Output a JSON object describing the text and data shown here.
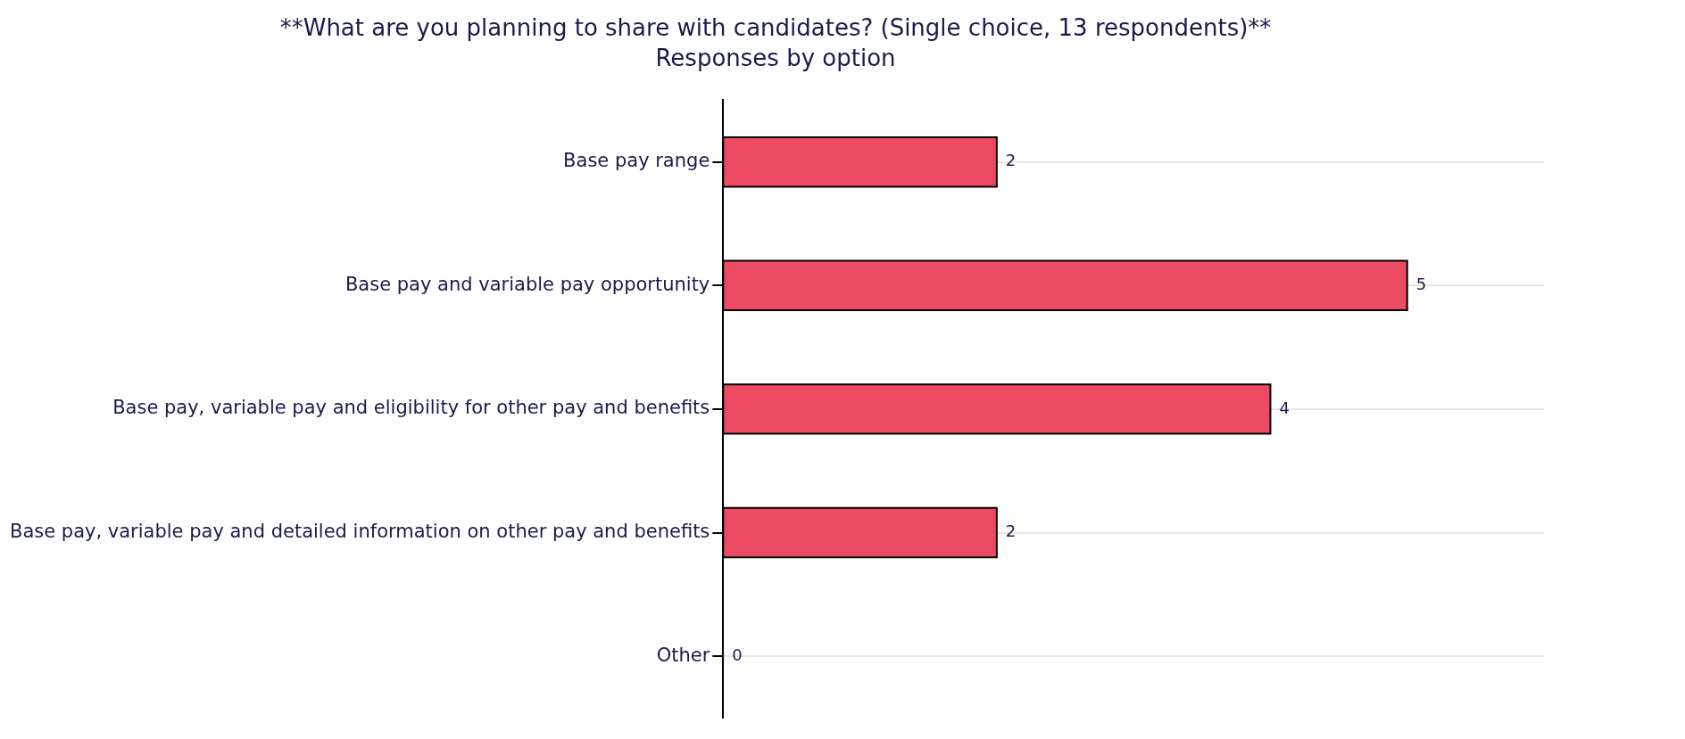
{
  "chart_data": {
    "type": "bar",
    "orientation": "horizontal",
    "title": "**What are you planning to share with candidates? (Single choice, 13 respondents)**",
    "subtitle": "Responses by option",
    "categories": [
      "Base pay range",
      "Base pay and variable pay opportunity",
      "Base pay, variable pay and eligibility for other pay and benefits",
      "Base pay, variable pay and detailed information on other pay and benefits",
      "Other"
    ],
    "values": [
      2,
      5,
      4,
      2,
      0
    ],
    "color": "#ec4a63",
    "data_labels": true,
    "grid": "y",
    "legend": false,
    "tick_labels": "y"
  }
}
